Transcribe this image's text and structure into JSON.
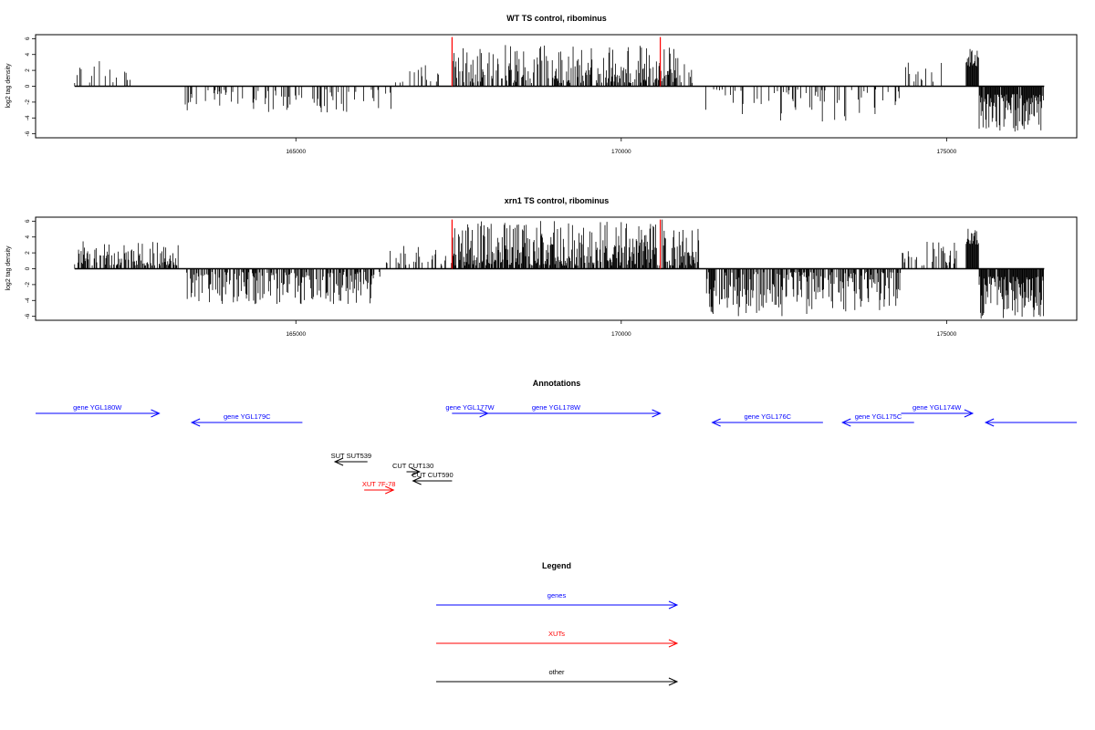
{
  "chart_data": [
    {
      "type": "bar",
      "title": "WT TS control, ribominus",
      "ylabel": "log2 tag density",
      "xlabel": "",
      "xlim": [
        161000,
        177000
      ],
      "ylim": [
        -6.5,
        6.5
      ],
      "x_ticks": [
        165000,
        170000,
        175000
      ],
      "x_tick_labels": [
        "165000",
        "170000",
        "175000"
      ],
      "y_ticks": [
        -6,
        -4,
        -2,
        0,
        2,
        4,
        6
      ],
      "y_tick_labels": [
        "-6",
        "-4",
        "-2",
        "0",
        "2",
        "4",
        "6"
      ],
      "data_range": [
        161600,
        176500
      ],
      "markers": [
        167400,
        170600
      ],
      "marker_color": "#ff0000",
      "grid": false,
      "regions": [
        {
          "x_start": 161600,
          "x_end": 162500,
          "sign": 1,
          "density": 0.25,
          "max": 3.5
        },
        {
          "x_start": 163300,
          "x_end": 166500,
          "sign": -1,
          "density": 0.22,
          "max": 3.5
        },
        {
          "x_start": 166300,
          "x_end": 167200,
          "sign": 1,
          "density": 0.3,
          "max": 3.0
        },
        {
          "x_start": 167400,
          "x_end": 170900,
          "sign": 1,
          "density": 0.55,
          "max": 5.2
        },
        {
          "x_start": 170900,
          "x_end": 171200,
          "sign": 1,
          "density": 0.3,
          "max": 2.8
        },
        {
          "x_start": 171300,
          "x_end": 174300,
          "sign": -1,
          "density": 0.22,
          "max": 4.5
        },
        {
          "x_start": 174000,
          "x_end": 175000,
          "sign": 1,
          "density": 0.2,
          "max": 3.0
        },
        {
          "x_start": 175300,
          "x_end": 175500,
          "sign": 1,
          "density": 1.0,
          "max": 4.8,
          "min": 2.5
        },
        {
          "x_start": 175500,
          "x_end": 176500,
          "sign": -1,
          "density": 0.9,
          "max": 5.8,
          "min": 1.0
        }
      ]
    },
    {
      "type": "bar",
      "title": "xrn1 TS control, ribominus",
      "ylabel": "log2 tag density",
      "xlabel": "",
      "xlim": [
        161000,
        177000
      ],
      "ylim": [
        -6.5,
        6.5
      ],
      "x_ticks": [
        165000,
        170000,
        175000
      ],
      "x_tick_labels": [
        "165000",
        "170000",
        "175000"
      ],
      "y_ticks": [
        -6,
        -4,
        -2,
        0,
        2,
        4,
        6
      ],
      "y_tick_labels": [
        "-6",
        "-4",
        "-2",
        "0",
        "2",
        "4",
        "6"
      ],
      "data_range": [
        161600,
        176500
      ],
      "markers": [
        167400,
        170600
      ],
      "marker_color": "#ff0000",
      "grid": false,
      "regions": [
        {
          "x_start": 161600,
          "x_end": 163200,
          "sign": 1,
          "density": 0.6,
          "max": 3.5
        },
        {
          "x_start": 163300,
          "x_end": 166300,
          "sign": -1,
          "density": 0.6,
          "max": 4.5
        },
        {
          "x_start": 166300,
          "x_end": 167400,
          "sign": 1,
          "density": 0.3,
          "max": 3.0
        },
        {
          "x_start": 167400,
          "x_end": 171200,
          "sign": 1,
          "density": 0.8,
          "max": 6.2
        },
        {
          "x_start": 171300,
          "x_end": 174300,
          "sign": -1,
          "density": 0.7,
          "max": 6.0
        },
        {
          "x_start": 174300,
          "x_end": 175200,
          "sign": 1,
          "density": 0.35,
          "max": 3.5
        },
        {
          "x_start": 175300,
          "x_end": 175500,
          "sign": 1,
          "density": 1.0,
          "max": 5.2,
          "min": 3.0
        },
        {
          "x_start": 175500,
          "x_end": 176500,
          "sign": -1,
          "density": 0.95,
          "max": 6.3,
          "min": 1.0
        }
      ]
    }
  ],
  "annotations": {
    "title": "Annotations",
    "features": [
      {
        "label": "gene YGL180W",
        "type": "gene",
        "x_start": 161000,
        "x_end": 162900,
        "strand": "+",
        "row": 0
      },
      {
        "label": "gene YGL179C",
        "type": "gene",
        "x_start": 163400,
        "x_end": 165100,
        "strand": "-",
        "row": 1
      },
      {
        "label": "gene YGL177W",
        "type": "gene",
        "x_start": 167400,
        "x_end": 167950,
        "strand": "+",
        "row": 0
      },
      {
        "label": "gene YGL178W",
        "type": "gene",
        "x_start": 167400,
        "x_end": 170600,
        "strand": "+",
        "row": 0
      },
      {
        "label": "gene YGL176C",
        "type": "gene",
        "x_start": 171400,
        "x_end": 173100,
        "strand": "-",
        "row": 1
      },
      {
        "label": "gene YGL175C",
        "type": "gene",
        "x_start": 173400,
        "x_end": 174500,
        "strand": "-",
        "row": 1
      },
      {
        "label": "gene YGL174W",
        "type": "gene",
        "x_start": 174300,
        "x_end": 175400,
        "strand": "+",
        "row": 0
      },
      {
        "label": "",
        "type": "gene",
        "x_start": 175600,
        "x_end": 177000,
        "strand": "-",
        "row": 1
      },
      {
        "label": "SUT SUT539",
        "type": "other",
        "x_start": 165600,
        "x_end": 166100,
        "strand": "-",
        "row": 2
      },
      {
        "label": "CUT CUT130",
        "type": "other",
        "x_start": 166700,
        "x_end": 166900,
        "strand": "+",
        "row": 3
      },
      {
        "label": "CUT CUT590",
        "type": "other",
        "x_start": 166800,
        "x_end": 167400,
        "strand": "-",
        "row": 4
      },
      {
        "label": "XUT 7F-78",
        "type": "xut",
        "x_start": 166050,
        "x_end": 166500,
        "strand": "+",
        "row": 5
      }
    ]
  },
  "legend": {
    "title": "Legend",
    "entries": [
      {
        "label": "genes",
        "color": "#0000ff"
      },
      {
        "label": "XUTs",
        "color": "#ff0000"
      },
      {
        "label": "other",
        "color": "#000000"
      }
    ]
  }
}
